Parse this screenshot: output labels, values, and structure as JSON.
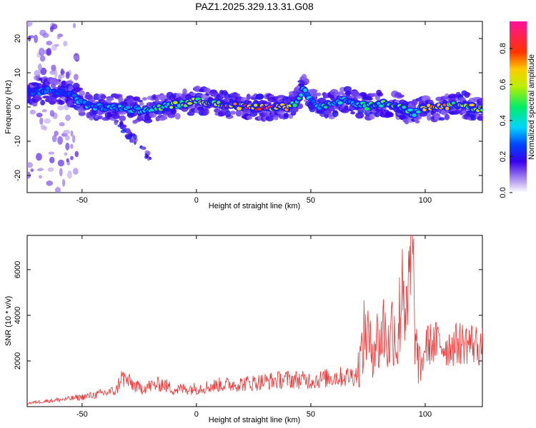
{
  "title": "PAZ1.2025.329.13.31.G08",
  "chart_data": [
    {
      "type": "heatmap",
      "xlabel": "Height of straight line (km)",
      "ylabel": "Frequency (Hz)",
      "xlim": [
        -74,
        125
      ],
      "ylim": [
        -25,
        25
      ],
      "xticks": [
        -50,
        0,
        50,
        100
      ],
      "yticks": [
        -20,
        -10,
        0,
        10,
        20
      ],
      "colorbar": {
        "label": "Normalized spectral amplitude",
        "range": [
          0.0,
          0.95
        ],
        "ticks": [
          "0.0",
          "0.2",
          "0.4",
          "0.6",
          "0.8"
        ]
      },
      "ridge": {
        "x": [
          -74,
          -65,
          -55,
          -50,
          -45,
          -35,
          -25,
          -15,
          -5,
          0,
          10,
          20,
          30,
          40,
          43,
          45,
          47,
          50,
          55,
          60,
          65,
          70,
          75,
          80,
          90,
          95,
          100,
          105,
          110,
          115,
          120,
          125
        ],
        "frequency": [
          4,
          5,
          4,
          1,
          0,
          0,
          -1,
          0,
          1,
          2,
          1,
          0,
          0,
          0,
          1,
          3,
          6,
          2,
          0,
          1,
          2,
          1,
          0,
          1,
          0,
          -2,
          0,
          0,
          0,
          1,
          0,
          -1
        ],
        "amplitude": [
          0.3,
          0.35,
          0.3,
          0.4,
          0.35,
          0.4,
          0.45,
          0.6,
          0.65,
          0.7,
          0.8,
          0.85,
          0.9,
          0.85,
          0.6,
          0.5,
          0.45,
          0.4,
          0.5,
          0.5,
          0.45,
          0.45,
          0.5,
          0.55,
          0.6,
          0.45,
          0.7,
          0.8,
          0.75,
          0.6,
          0.7,
          0.6
        ]
      }
    },
    {
      "type": "line",
      "xlabel": "Height of straight line (km)",
      "ylabel": "SNR (10 * v/v)",
      "xlim": [
        -74,
        125
      ],
      "ylim": [
        0,
        7500
      ],
      "xticks": [
        -50,
        0,
        50,
        100
      ],
      "yticks": [
        2000,
        4000,
        6000
      ],
      "color": "#ee3333",
      "series": [
        {
          "x": [
            -74,
            -65,
            -55,
            -45,
            -35,
            -33,
            -25,
            -15,
            -10,
            0,
            10,
            20,
            30,
            40,
            50,
            55,
            60,
            65,
            70,
            72,
            74,
            76,
            78,
            80,
            82,
            84,
            86,
            88,
            90,
            92,
            94,
            96,
            98,
            100,
            105,
            110,
            115,
            120,
            125
          ],
          "values": [
            150,
            250,
            350,
            500,
            700,
            1300,
            800,
            1000,
            750,
            800,
            950,
            1000,
            1100,
            1200,
            1150,
            1200,
            1300,
            1300,
            1400,
            2200,
            3500,
            2500,
            3000,
            2800,
            3500,
            2600,
            3800,
            2500,
            6300,
            3500,
            7000,
            2500,
            1500,
            2700,
            2800,
            2600,
            2800,
            2800,
            2600
          ]
        }
      ]
    }
  ]
}
